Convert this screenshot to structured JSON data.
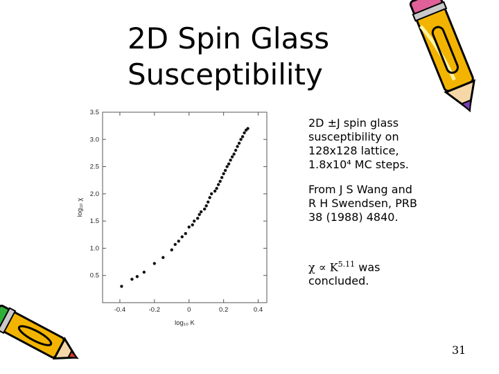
{
  "slide": {
    "title_lines": [
      "2D Spin Glass",
      "Susceptibility"
    ],
    "description_lines": [
      "2D ±J spin glass",
      "susceptibility on",
      "128x128 lattice,",
      "1.8x10⁴ MC steps."
    ],
    "source_lines": [
      "From J S Wang and",
      "R H Swendsen, PRB",
      "38 (1988) 4840."
    ],
    "conclusion": {
      "formula": "χ ∝ K",
      "exponent": "5.11",
      "rest": " was",
      "line2": "concluded."
    },
    "slide_number": "31",
    "decorations": [
      "pencil-icon-top-right",
      "pencil-icon-bottom-left"
    ]
  },
  "chart_data": {
    "type": "scatter",
    "xlabel": "log₁₀ K",
    "ylabel": "log₁₀ χ",
    "xlim": [
      -0.5,
      0.45
    ],
    "ylim": [
      0.0,
      3.5
    ],
    "xticks": [
      -0.4,
      -0.2,
      0,
      0.2,
      0.4
    ],
    "xtick_labels": [
      "-0.4",
      "-0.2",
      "0",
      "0.2",
      "0.4"
    ],
    "yticks": [
      0.5,
      1.0,
      1.5,
      2.0,
      2.5,
      3.0,
      3.5
    ],
    "ytick_labels": [
      "0.5",
      "1.0",
      "1.5",
      "2.0",
      "2.5",
      "3.0",
      "3.5"
    ],
    "grid": false,
    "series": [
      {
        "x": [
          -0.39,
          -0.33,
          -0.3,
          -0.26,
          -0.2,
          -0.15,
          -0.1,
          -0.08,
          -0.06,
          -0.04,
          -0.02,
          0.0,
          0.02,
          0.03,
          0.05,
          0.06,
          0.07,
          0.09,
          0.1,
          0.11,
          0.12,
          0.13,
          0.15,
          0.16,
          0.17,
          0.18,
          0.19,
          0.2,
          0.21,
          0.22,
          0.23,
          0.24,
          0.25,
          0.26,
          0.27,
          0.28,
          0.29,
          0.3,
          0.31,
          0.32,
          0.33,
          0.34
        ],
        "y": [
          0.3,
          0.43,
          0.48,
          0.56,
          0.72,
          0.83,
          0.97,
          1.07,
          1.13,
          1.21,
          1.27,
          1.39,
          1.43,
          1.5,
          1.55,
          1.62,
          1.67,
          1.72,
          1.78,
          1.85,
          1.93,
          2.0,
          2.05,
          2.1,
          2.17,
          2.23,
          2.3,
          2.37,
          2.43,
          2.5,
          2.55,
          2.62,
          2.68,
          2.73,
          2.8,
          2.87,
          2.93,
          3.0,
          3.05,
          3.12,
          3.17,
          3.2
        ]
      }
    ]
  }
}
